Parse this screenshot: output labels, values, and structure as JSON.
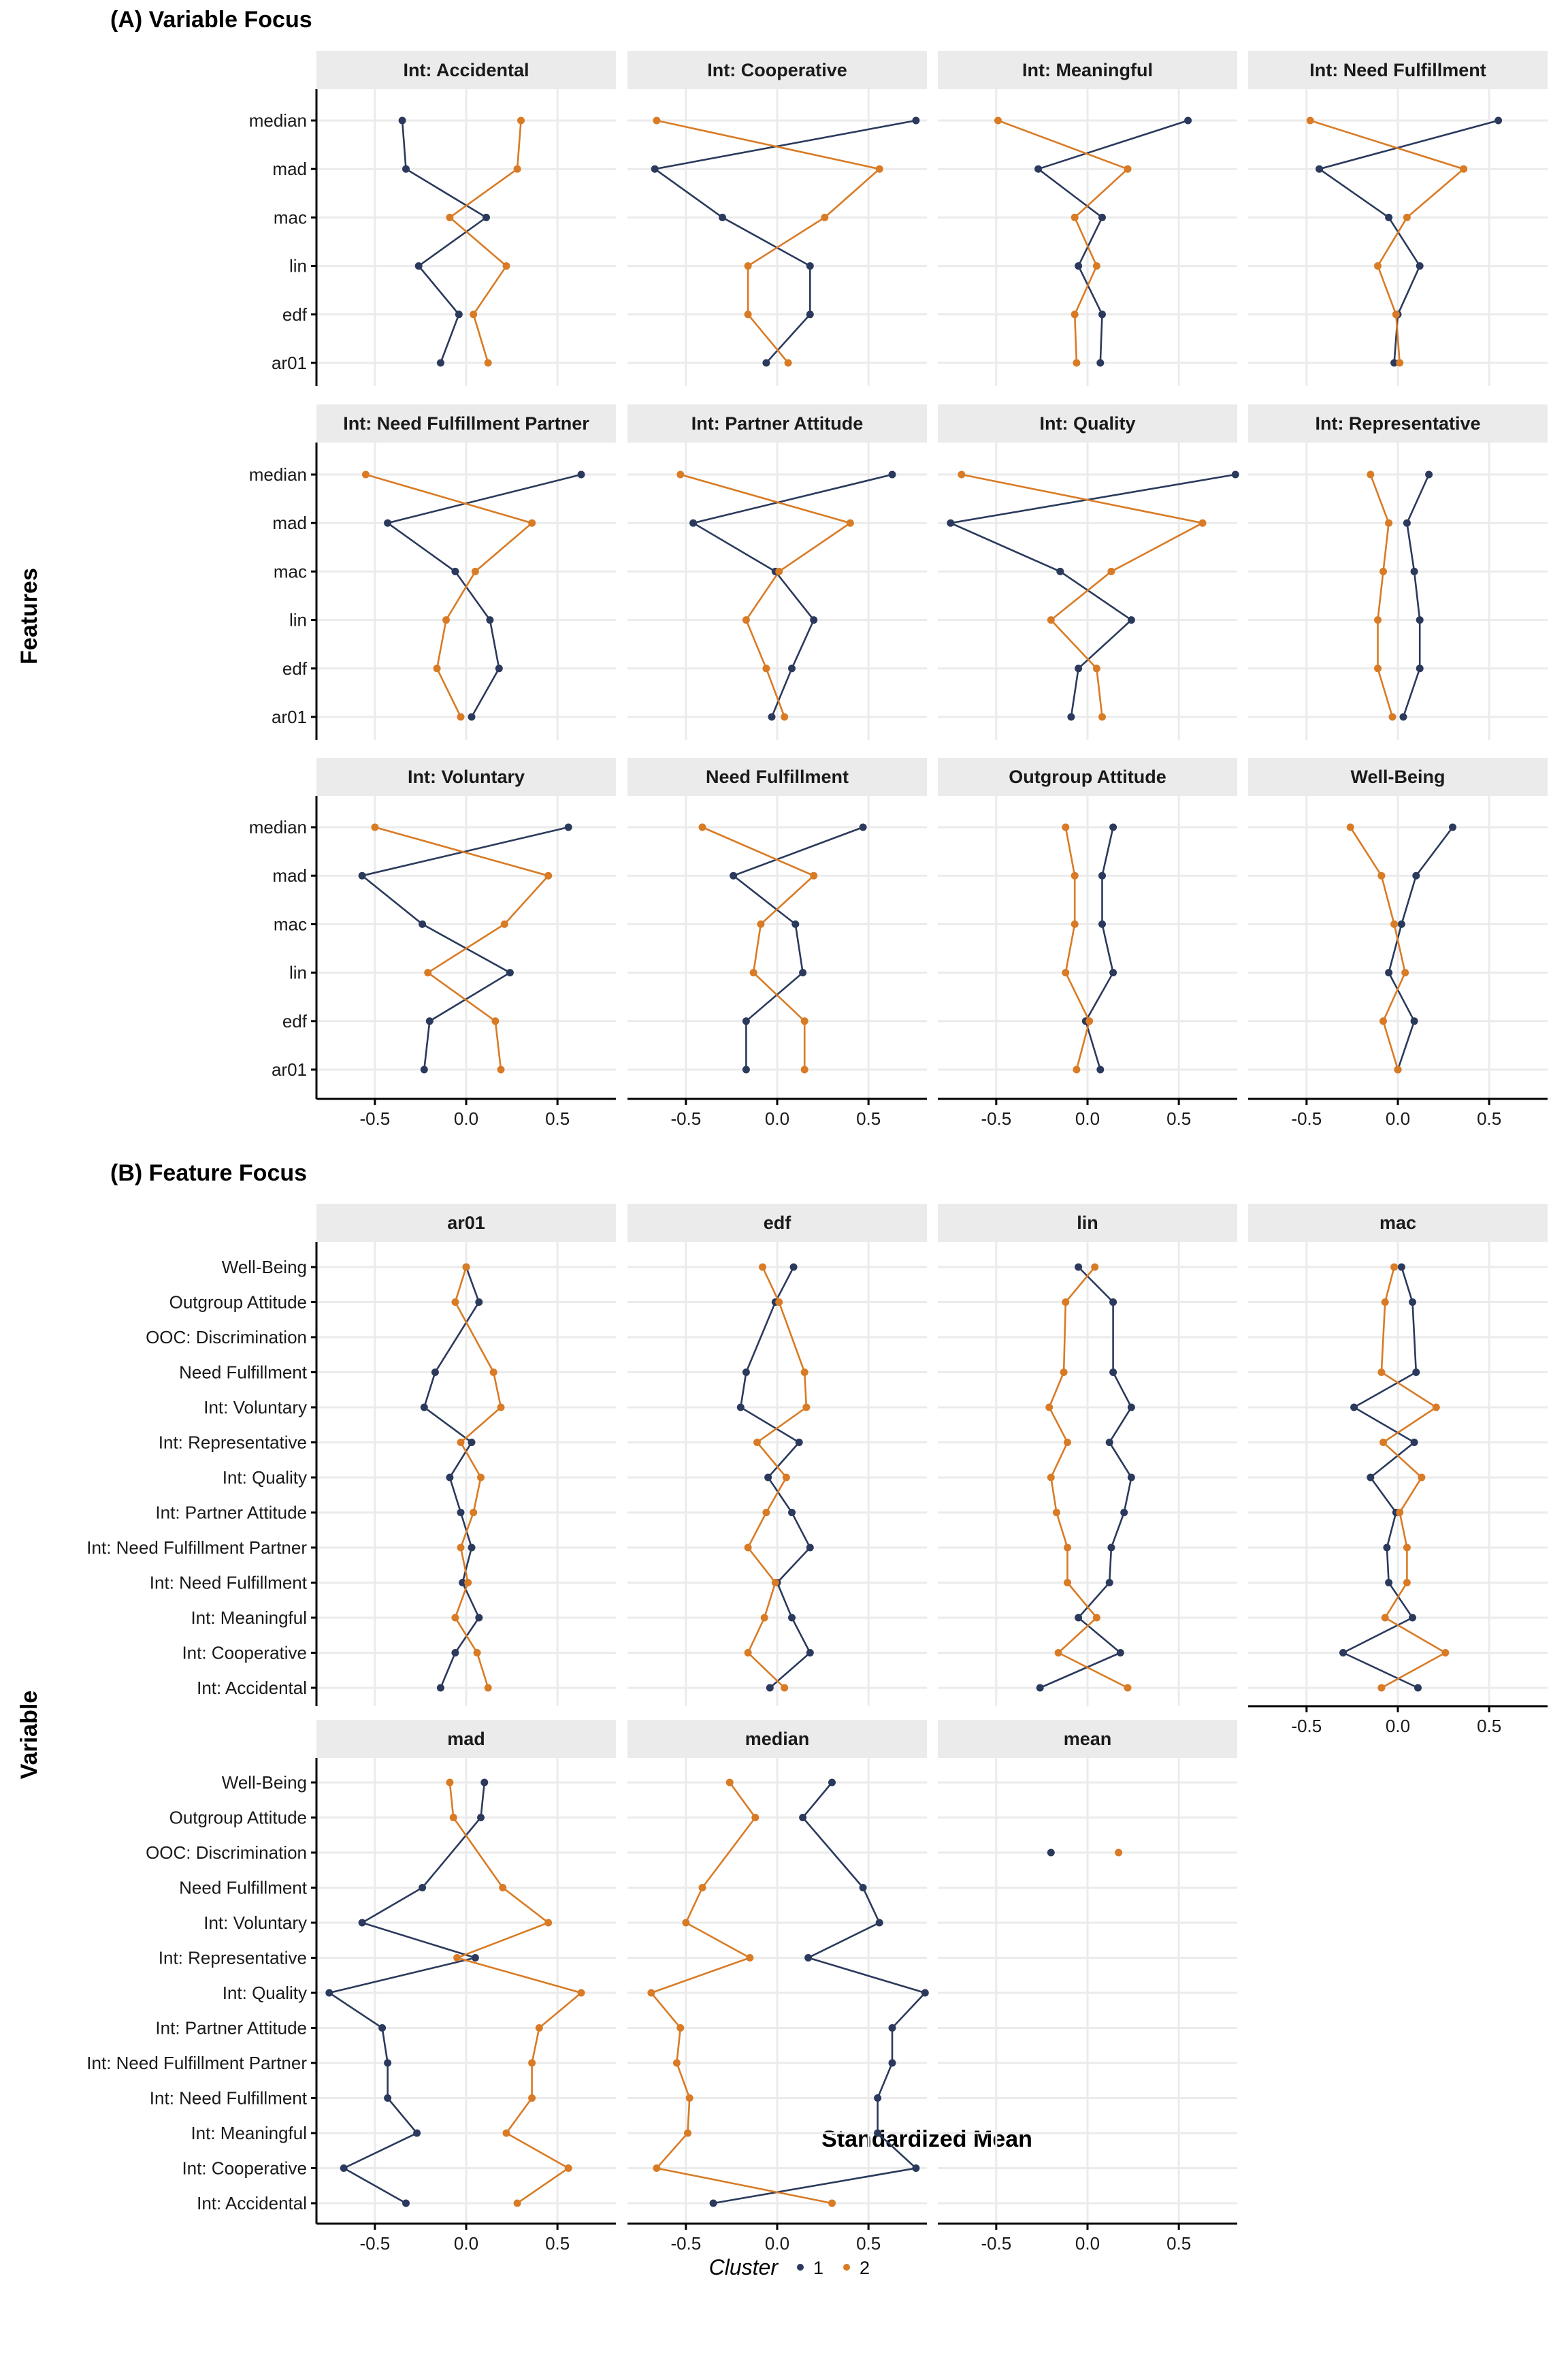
{
  "colors": {
    "cluster1": "#2b3a5c",
    "cluster2": "#d97b25"
  },
  "xaxis": {
    "ticks": [
      -0.5,
      0.0,
      0.5
    ],
    "tick_labels": [
      "-0.5",
      "0.0",
      "0.5"
    ],
    "range": [
      -0.82,
      0.82
    ]
  },
  "axis_title_x": "Standardized Mean",
  "legend": {
    "title": "Cluster",
    "items": [
      "1",
      "2"
    ]
  },
  "chart_data": [
    {
      "type": "line",
      "section": "A",
      "title": "(A) Variable Focus",
      "ylabel": "Features",
      "xlabel": "Standardized Mean",
      "y_categories": [
        "median",
        "mad",
        "mac",
        "lin",
        "edf",
        "ar01"
      ],
      "panels": [
        {
          "title": "Int: Accidental",
          "series": [
            {
              "name": "1",
              "values": [
                -0.35,
                -0.33,
                0.11,
                -0.26,
                -0.04,
                -0.14
              ]
            },
            {
              "name": "2",
              "values": [
                0.3,
                0.28,
                -0.09,
                0.22,
                0.04,
                0.12
              ]
            }
          ]
        },
        {
          "title": "Int: Cooperative",
          "series": [
            {
              "name": "1",
              "values": [
                0.76,
                -0.67,
                -0.3,
                0.18,
                0.18,
                -0.06
              ]
            },
            {
              "name": "2",
              "values": [
                -0.66,
                0.56,
                0.26,
                -0.16,
                -0.16,
                0.06
              ]
            }
          ]
        },
        {
          "title": "Int: Meaningful",
          "series": [
            {
              "name": "1",
              "values": [
                0.55,
                -0.27,
                0.08,
                -0.05,
                0.08,
                0.07
              ]
            },
            {
              "name": "2",
              "values": [
                -0.49,
                0.22,
                -0.07,
                0.05,
                -0.07,
                -0.06
              ]
            }
          ]
        },
        {
          "title": "Int: Need Fulfillment",
          "series": [
            {
              "name": "1",
              "values": [
                0.55,
                -0.43,
                -0.05,
                0.12,
                0.0,
                -0.02
              ]
            },
            {
              "name": "2",
              "values": [
                -0.48,
                0.36,
                0.05,
                -0.11,
                -0.01,
                0.01
              ]
            }
          ]
        },
        {
          "title": "Int: Need Fulfillment Partner",
          "series": [
            {
              "name": "1",
              "values": [
                0.63,
                -0.43,
                -0.06,
                0.13,
                0.18,
                0.03
              ]
            },
            {
              "name": "2",
              "values": [
                -0.55,
                0.36,
                0.05,
                -0.11,
                -0.16,
                -0.03
              ]
            }
          ]
        },
        {
          "title": "Int: Partner Attitude",
          "series": [
            {
              "name": "1",
              "values": [
                0.63,
                -0.46,
                -0.01,
                0.2,
                0.08,
                -0.03
              ]
            },
            {
              "name": "2",
              "values": [
                -0.53,
                0.4,
                0.01,
                -0.17,
                -0.06,
                0.04
              ]
            }
          ]
        },
        {
          "title": "Int: Quality",
          "series": [
            {
              "name": "1",
              "values": [
                0.81,
                -0.75,
                -0.15,
                0.24,
                -0.05,
                -0.09
              ]
            },
            {
              "name": "2",
              "values": [
                -0.69,
                0.63,
                0.13,
                -0.2,
                0.05,
                0.08
              ]
            }
          ]
        },
        {
          "title": "Int: Representative",
          "series": [
            {
              "name": "1",
              "values": [
                0.17,
                0.05,
                0.09,
                0.12,
                0.12,
                0.03
              ]
            },
            {
              "name": "2",
              "values": [
                -0.15,
                -0.05,
                -0.08,
                -0.11,
                -0.11,
                -0.03
              ]
            }
          ]
        },
        {
          "title": "Int: Voluntary",
          "series": [
            {
              "name": "1",
              "values": [
                0.56,
                -0.57,
                -0.24,
                0.24,
                -0.2,
                -0.23
              ]
            },
            {
              "name": "2",
              "values": [
                -0.5,
                0.45,
                0.21,
                -0.21,
                0.16,
                0.19
              ]
            }
          ]
        },
        {
          "title": "Need Fulfillment",
          "series": [
            {
              "name": "1",
              "values": [
                0.47,
                -0.24,
                0.1,
                0.14,
                -0.17,
                -0.17
              ]
            },
            {
              "name": "2",
              "values": [
                -0.41,
                0.2,
                -0.09,
                -0.13,
                0.15,
                0.15
              ]
            }
          ]
        },
        {
          "title": "Outgroup Attitude",
          "series": [
            {
              "name": "1",
              "values": [
                0.14,
                0.08,
                0.08,
                0.14,
                -0.01,
                0.07
              ]
            },
            {
              "name": "2",
              "values": [
                -0.12,
                -0.07,
                -0.07,
                -0.12,
                0.01,
                -0.06
              ]
            }
          ]
        },
        {
          "title": "Well-Being",
          "series": [
            {
              "name": "1",
              "values": [
                0.3,
                0.1,
                0.02,
                -0.05,
                0.09,
                0.0
              ]
            },
            {
              "name": "2",
              "values": [
                -0.26,
                -0.09,
                -0.02,
                0.04,
                -0.08,
                0.0
              ]
            }
          ]
        }
      ]
    },
    {
      "type": "line",
      "section": "B",
      "title": "(B) Feature Focus",
      "ylabel": "Variable",
      "xlabel": "Standardized Mean",
      "y_categories": [
        "Well-Being",
        "Outgroup Attitude",
        "OOC: Discrimination",
        "Need Fulfillment",
        "Int: Voluntary",
        "Int: Representative",
        "Int: Quality",
        "Int: Partner Attitude",
        "Int: Need Fulfillment Partner",
        "Int: Need Fulfillment",
        "Int: Meaningful",
        "Int: Cooperative",
        "Int: Accidental"
      ],
      "panels": [
        {
          "title": "ar01",
          "series": [
            {
              "name": "1",
              "values": [
                0.0,
                0.07,
                null,
                -0.17,
                -0.23,
                0.03,
                -0.09,
                -0.03,
                0.03,
                -0.02,
                0.07,
                -0.06,
                -0.14
              ]
            },
            {
              "name": "2",
              "values": [
                0.0,
                -0.06,
                null,
                0.15,
                0.19,
                -0.03,
                0.08,
                0.04,
                -0.03,
                0.01,
                -0.06,
                0.06,
                0.12
              ]
            }
          ]
        },
        {
          "title": "edf",
          "series": [
            {
              "name": "1",
              "values": [
                0.09,
                -0.01,
                null,
                -0.17,
                -0.2,
                0.12,
                -0.05,
                0.08,
                0.18,
                0.0,
                0.08,
                0.18,
                -0.04
              ]
            },
            {
              "name": "2",
              "values": [
                -0.08,
                0.01,
                null,
                0.15,
                0.16,
                -0.11,
                0.05,
                -0.06,
                -0.16,
                -0.01,
                -0.07,
                -0.16,
                0.04
              ]
            }
          ]
        },
        {
          "title": "lin",
          "series": [
            {
              "name": "1",
              "values": [
                -0.05,
                0.14,
                null,
                0.14,
                0.24,
                0.12,
                0.24,
                0.2,
                0.13,
                0.12,
                -0.05,
                0.18,
                -0.26
              ]
            },
            {
              "name": "2",
              "values": [
                0.04,
                -0.12,
                null,
                -0.13,
                -0.21,
                -0.11,
                -0.2,
                -0.17,
                -0.11,
                -0.11,
                0.05,
                -0.16,
                0.22
              ]
            }
          ]
        },
        {
          "title": "mac",
          "series": [
            {
              "name": "1",
              "values": [
                0.02,
                0.08,
                null,
                0.1,
                -0.24,
                0.09,
                -0.15,
                -0.01,
                -0.06,
                -0.05,
                0.08,
                -0.3,
                0.11
              ]
            },
            {
              "name": "2",
              "values": [
                -0.02,
                -0.07,
                null,
                -0.09,
                0.21,
                -0.08,
                0.13,
                0.01,
                0.05,
                0.05,
                -0.07,
                0.26,
                -0.09
              ]
            }
          ]
        },
        {
          "title": "mad",
          "series": [
            {
              "name": "1",
              "values": [
                0.1,
                0.08,
                null,
                -0.24,
                -0.57,
                0.05,
                -0.75,
                -0.46,
                -0.43,
                -0.43,
                -0.27,
                -0.67,
                -0.33
              ]
            },
            {
              "name": "2",
              "values": [
                -0.09,
                -0.07,
                null,
                0.2,
                0.45,
                -0.05,
                0.63,
                0.4,
                0.36,
                0.36,
                0.22,
                0.56,
                0.28
              ]
            }
          ]
        },
        {
          "title": "median",
          "series": [
            {
              "name": "1",
              "values": [
                0.3,
                0.14,
                null,
                0.47,
                0.56,
                0.17,
                0.81,
                0.63,
                0.63,
                0.55,
                0.55,
                0.76,
                -0.35
              ]
            },
            {
              "name": "2",
              "values": [
                -0.26,
                -0.12,
                null,
                -0.41,
                -0.5,
                -0.15,
                -0.69,
                -0.53,
                -0.55,
                -0.48,
                -0.49,
                -0.66,
                0.3
              ]
            }
          ]
        },
        {
          "title": "mean",
          "series": [
            {
              "name": "1",
              "values": [
                null,
                null,
                -0.2,
                null,
                null,
                null,
                null,
                null,
                null,
                null,
                null,
                null,
                null
              ]
            },
            {
              "name": "2",
              "values": [
                null,
                null,
                0.17,
                null,
                null,
                null,
                null,
                null,
                null,
                null,
                null,
                null,
                null
              ]
            }
          ]
        }
      ]
    }
  ]
}
